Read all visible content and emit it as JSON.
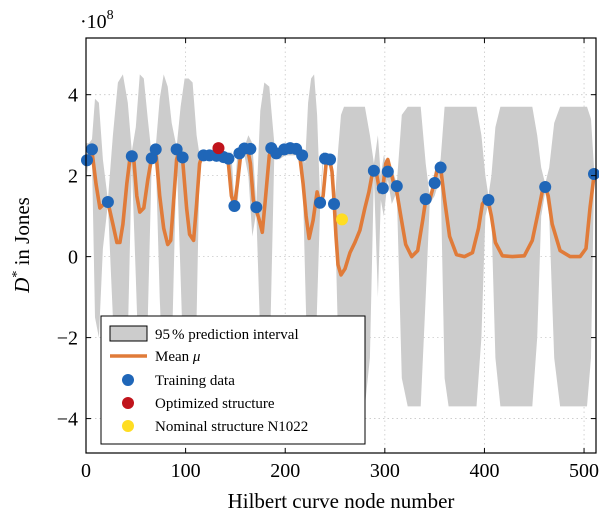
{
  "chart_data": {
    "type": "line",
    "xlabel": "Hilbert curve node number",
    "ylabel_main": "D",
    "ylabel_sup": "*",
    "ylabel_rest": " in Jones",
    "y_multiplier_base": "·10",
    "y_multiplier_exp": "8",
    "xlim": [
      0,
      512
    ],
    "ylim": [
      -4.85,
      5.4
    ],
    "grid": true,
    "x_ticks": [
      0,
      100,
      200,
      300,
      400,
      500
    ],
    "y_ticks": [
      -4,
      -2,
      0,
      2,
      4
    ],
    "x_tick_labels": [
      "0",
      "100",
      "200",
      "300",
      "400",
      "500"
    ],
    "y_tick_labels": [
      "−4",
      "−2",
      "0",
      "2",
      "4"
    ],
    "legend_placement": "bottom-left",
    "legend": [
      {
        "key": "interval",
        "label_prefix": "95",
        "label_unit": "%",
        "label_rest": " prediction interval",
        "color": "#cccccc"
      },
      {
        "key": "mean",
        "label": "Mean",
        "symbol": "μ",
        "color": "#e07b39"
      },
      {
        "key": "training",
        "label": "Training data",
        "color": "#1f66b8"
      },
      {
        "key": "optimized",
        "label": "Optimized structure",
        "color": "#c0141c"
      },
      {
        "key": "nominal",
        "label": "Nominal structure N1022",
        "color": "#ffdd22"
      }
    ],
    "training_data": {
      "x": [
        1,
        6,
        22,
        46,
        66,
        70,
        91,
        97,
        118,
        124,
        131,
        138,
        143,
        149,
        154,
        159,
        165,
        171,
        186,
        191,
        199,
        205,
        211,
        217,
        235,
        240,
        245,
        249,
        289,
        298,
        303,
        312,
        341,
        350,
        356,
        404,
        461,
        510
      ],
      "y": [
        2.38,
        2.65,
        1.35,
        2.48,
        2.43,
        2.65,
        2.65,
        2.45,
        2.5,
        2.5,
        2.49,
        2.46,
        2.42,
        1.25,
        2.55,
        2.67,
        2.66,
        1.22,
        2.68,
        2.55,
        2.65,
        2.68,
        2.66,
        2.5,
        1.33,
        2.42,
        2.4,
        1.3,
        2.12,
        1.69,
        2.1,
        1.74,
        1.42,
        1.82,
        2.2,
        1.4,
        1.72,
        2.04
      ]
    },
    "optimized": {
      "x": [
        133
      ],
      "y": [
        2.68
      ]
    },
    "nominal": {
      "x": [
        257
      ],
      "y": [
        0.92
      ]
    },
    "mean_curve": {
      "x": [
        0,
        3,
        6,
        10,
        14,
        18,
        22,
        27,
        31,
        34,
        37,
        41,
        44,
        46,
        48,
        51,
        54,
        58,
        62,
        66,
        70,
        74,
        78,
        82,
        85,
        88,
        91,
        94,
        97,
        101,
        104,
        108,
        111,
        114,
        118,
        122,
        126,
        131,
        136,
        140,
        143,
        146,
        149,
        152,
        155,
        159,
        162,
        165,
        168,
        171,
        174,
        177,
        180,
        184,
        187,
        191,
        195,
        199,
        203,
        207,
        211,
        215,
        218,
        221,
        224,
        228,
        232,
        235,
        238,
        241,
        243,
        245,
        247,
        249,
        251,
        253,
        256,
        260,
        265,
        270,
        275,
        280,
        284,
        287,
        289,
        292,
        295,
        298,
        301,
        303,
        306,
        309,
        312,
        316,
        321,
        327,
        333,
        338,
        341,
        345,
        350,
        353,
        356,
        360,
        365,
        372,
        380,
        388,
        394,
        398,
        401,
        404,
        407,
        411,
        418,
        428,
        440,
        448,
        454,
        458,
        461,
        464,
        468,
        476,
        486,
        496,
        502,
        506,
        510,
        512
      ],
      "y": [
        2.3,
        2.5,
        2.6,
        1.8,
        1.2,
        1.3,
        1.35,
        0.8,
        0.35,
        0.35,
        0.8,
        1.8,
        2.4,
        2.55,
        2.4,
        1.5,
        1.1,
        1.2,
        1.9,
        2.45,
        2.65,
        1.5,
        0.7,
        0.3,
        0.4,
        1.4,
        2.4,
        2.65,
        2.4,
        1.2,
        0.55,
        0.4,
        1.3,
        2.3,
        2.6,
        2.5,
        2.5,
        2.55,
        2.5,
        2.45,
        2.3,
        1.5,
        1.25,
        1.8,
        2.45,
        2.7,
        2.68,
        2.3,
        1.4,
        1.15,
        0.9,
        0.6,
        1.4,
        2.5,
        2.68,
        2.55,
        2.6,
        2.68,
        2.6,
        2.65,
        2.68,
        2.4,
        1.8,
        1.0,
        0.45,
        0.9,
        1.6,
        1.3,
        1.5,
        2.3,
        2.42,
        2.35,
        2.1,
        1.4,
        0.5,
        -0.2,
        -0.45,
        -0.3,
        0.1,
        0.35,
        0.65,
        1.2,
        1.6,
        2.0,
        2.15,
        2.0,
        1.6,
        1.7,
        2.3,
        2.4,
        2.1,
        1.8,
        1.6,
        1.0,
        0.3,
        0.0,
        0.15,
        0.9,
        1.4,
        1.4,
        1.85,
        2.2,
        2.2,
        1.4,
        0.5,
        0.05,
        0.0,
        0.1,
        0.7,
        1.3,
        1.4,
        1.35,
        1.0,
        0.35,
        0.02,
        0.0,
        0.02,
        0.4,
        1.1,
        1.6,
        1.72,
        1.5,
        0.8,
        0.15,
        0.0,
        0.0,
        0.2,
        1.2,
        2.0,
        2.1
      ]
    },
    "interval": {
      "x": [
        0,
        3,
        6,
        9,
        13,
        17,
        22,
        27,
        32,
        37,
        42,
        46,
        50,
        54,
        58,
        62,
        66,
        70,
        74,
        78,
        82,
        86,
        91,
        95,
        99,
        103,
        107,
        111,
        114,
        118,
        124,
        131,
        138,
        143,
        146,
        149,
        152,
        155,
        159,
        163,
        167,
        171,
        175,
        179,
        184,
        189,
        194,
        200,
        206,
        212,
        217,
        220,
        223,
        226,
        229,
        232,
        235,
        238,
        241,
        244,
        247,
        250,
        253,
        256,
        259,
        263,
        268,
        274,
        280,
        285,
        289,
        293,
        296,
        299,
        303,
        307,
        312,
        317,
        323,
        330,
        336,
        341,
        345,
        350,
        356,
        360,
        364,
        369,
        374,
        380,
        386,
        392,
        397,
        401,
        404,
        407,
        411,
        416,
        422,
        430,
        440,
        448,
        453,
        457,
        461,
        465,
        470,
        476,
        482,
        490,
        498,
        503,
        507,
        510,
        512
      ],
      "upper": [
        2.8,
        2.8,
        2.9,
        3.9,
        3.8,
        2.4,
        1.4,
        3.0,
        4.3,
        4.5,
        3.8,
        2.6,
        3.2,
        4.5,
        4.4,
        3.4,
        2.5,
        2.7,
        3.9,
        4.5,
        4.2,
        3.3,
        2.7,
        3.7,
        4.4,
        4.4,
        4.3,
        3.0,
        2.5,
        2.6,
        2.6,
        2.7,
        2.6,
        2.5,
        2.6,
        1.3,
        2.6,
        2.6,
        2.7,
        3.0,
        2.8,
        1.3,
        3.6,
        4.3,
        4.2,
        2.8,
        2.6,
        2.7,
        2.7,
        2.7,
        2.6,
        2.3,
        3.8,
        4.4,
        4.5,
        3.5,
        1.4,
        2.6,
        2.4,
        2.5,
        2.3,
        1.4,
        2.6,
        3.5,
        3.7,
        3.7,
        3.7,
        3.7,
        3.7,
        3.0,
        2.3,
        3.0,
        2.0,
        2.5,
        2.2,
        2.2,
        1.8,
        3.5,
        3.7,
        3.7,
        3.7,
        2.3,
        1.5,
        2.1,
        2.4,
        3.7,
        3.7,
        3.7,
        3.7,
        3.7,
        3.7,
        3.7,
        3.0,
        2.0,
        1.5,
        2.0,
        3.2,
        3.7,
        3.7,
        3.7,
        3.7,
        3.7,
        3.0,
        2.2,
        1.8,
        2.2,
        3.3,
        3.7,
        3.7,
        3.7,
        3.7,
        3.7,
        3.4,
        2.2,
        2.1
      ],
      "lower": [
        1.8,
        2.5,
        2.4,
        -1.5,
        -2.0,
        0.2,
        1.3,
        -1.5,
        -3.5,
        -3.8,
        -2.0,
        2.3,
        -0.5,
        -3.5,
        -3.5,
        -1.5,
        2.3,
        2.5,
        -1.0,
        -3.5,
        -3.8,
        -2.5,
        2.5,
        -0.5,
        -3.6,
        -3.7,
        -3.6,
        -1.5,
        2.3,
        2.4,
        2.4,
        2.4,
        2.3,
        2.4,
        1.2,
        1.1,
        1.2,
        2.4,
        2.5,
        2.0,
        0.5,
        1.1,
        -2.0,
        -3.5,
        -3.0,
        2.5,
        2.4,
        2.5,
        2.5,
        2.5,
        2.4,
        -0.5,
        -3.3,
        -3.8,
        -3.6,
        -1.2,
        1.2,
        2.3,
        2.2,
        2.3,
        2.1,
        1.0,
        -2.0,
        -3.5,
        -3.7,
        -3.7,
        -3.7,
        -3.7,
        -3.7,
        -2.5,
        2.0,
        -1.0,
        1.4,
        1.0,
        1.9,
        1.3,
        1.6,
        -3.0,
        -3.7,
        -3.7,
        -3.7,
        -1.0,
        1.3,
        1.5,
        2.0,
        -3.0,
        -3.7,
        -3.7,
        -3.7,
        -3.7,
        -3.7,
        -3.7,
        -2.0,
        1.0,
        1.3,
        1.0,
        -2.5,
        -3.7,
        -3.7,
        -3.7,
        -3.7,
        -3.7,
        -2.0,
        1.0,
        1.6,
        1.0,
        -2.5,
        -3.7,
        -3.7,
        -3.7,
        -3.7,
        -3.7,
        -2.5,
        1.9,
        1.95
      ]
    }
  }
}
